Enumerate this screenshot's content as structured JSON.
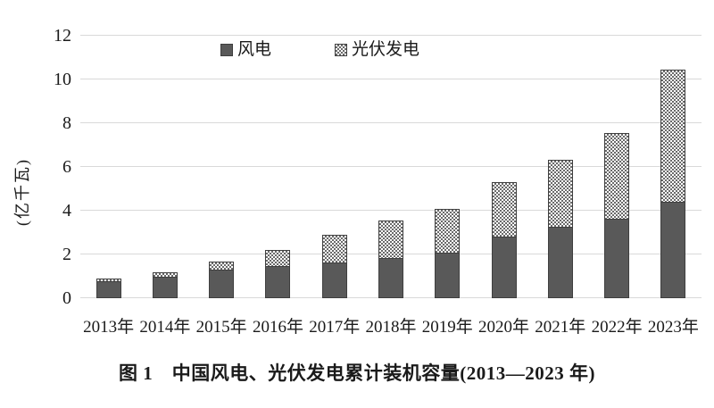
{
  "chart_data": {
    "type": "bar",
    "stacked": true,
    "title": "",
    "ylabel": "(亿千瓦)",
    "xlabel": "",
    "categories": [
      "2013年",
      "2014年",
      "2015年",
      "2016年",
      "2017年",
      "2018年",
      "2019年",
      "2020年",
      "2021年",
      "2022年",
      "2023年"
    ],
    "series": [
      {
        "name": "风电",
        "slug": "wind",
        "style": "solid",
        "values": [
          0.77,
          0.96,
          1.29,
          1.49,
          1.64,
          1.84,
          2.1,
          2.81,
          3.28,
          3.65,
          4.41
        ]
      },
      {
        "name": "光伏发电",
        "slug": "solar",
        "style": "checker",
        "values": [
          0.19,
          0.28,
          0.43,
          0.77,
          1.3,
          1.74,
          2.04,
          2.53,
          3.07,
          3.93,
          6.09
        ]
      }
    ],
    "yticks": [
      0,
      2,
      4,
      6,
      8,
      10,
      12
    ],
    "ylim": [
      0,
      12
    ],
    "grid": true,
    "legend_position": "top-center"
  },
  "caption": "图 1　中国风电、光伏发电累计装机容量(2013—2023 年)",
  "colors": {
    "wind_fill": "#595959",
    "checker_dark": "#6a6a6a",
    "checker_light": "#ffffff",
    "bar_border": "#3f3f3f",
    "gridline": "#d9d9d9",
    "text": "#1a1a1a"
  }
}
